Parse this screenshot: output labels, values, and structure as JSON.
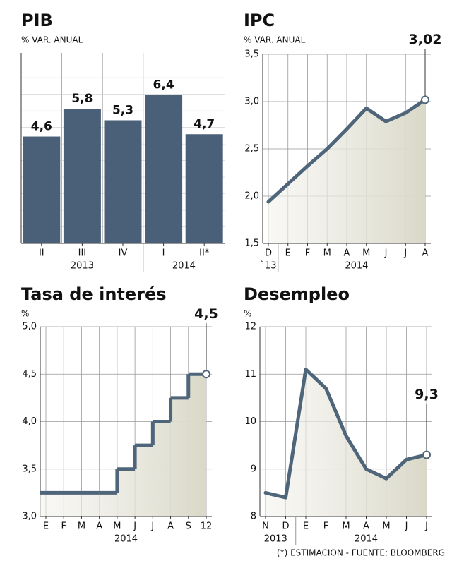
{
  "chart_data": [
    {
      "type": "bar",
      "title": "PIB",
      "subtitle": "% VAR. ANUAL",
      "categories": [
        "II",
        "III",
        "IV",
        "I",
        "II*"
      ],
      "groups": [
        {
          "label": "2013",
          "count": 3
        },
        {
          "label": "2014",
          "count": 2
        }
      ],
      "values": [
        4.6,
        5.8,
        5.3,
        6.4,
        4.7
      ],
      "value_labels": [
        "4,6",
        "5,8",
        "5,3",
        "6,4",
        "4,7"
      ],
      "color": "#4a6078",
      "ylim": [
        0,
        8.2
      ]
    },
    {
      "type": "line",
      "title": "IPC",
      "subtitle": "% VAR. ANUAL",
      "categories": [
        "D",
        "E",
        "F",
        "M",
        "A",
        "M",
        "J",
        "J",
        "A"
      ],
      "groups": [
        {
          "label": "`13",
          "count": 1
        },
        {
          "label": "2014",
          "count": 8
        }
      ],
      "values": [
        1.94,
        2.13,
        2.32,
        2.5,
        2.71,
        2.93,
        2.79,
        2.88,
        3.02
      ],
      "value_labels": [
        null,
        null,
        null,
        null,
        null,
        null,
        null,
        null,
        "3,02"
      ],
      "color": "#4f6579",
      "ylim": [
        1.5,
        3.5
      ],
      "yticks": [
        {
          "value": 1.5,
          "label": "1,5"
        },
        {
          "value": 2.0,
          "label": "2,0"
        },
        {
          "value": 2.5,
          "label": "2,5"
        },
        {
          "value": 3.0,
          "label": "3,0"
        },
        {
          "value": 3.5,
          "label": "3,5"
        }
      ],
      "grid": true
    },
    {
      "type": "step",
      "title": "Tasa de interés",
      "subtitle": "%",
      "categories": [
        "E",
        "F",
        "M",
        "A",
        "M",
        "J",
        "J",
        "A",
        "S",
        "12"
      ],
      "groups": [
        {
          "label": "2014",
          "count": 10
        }
      ],
      "values": [
        3.25,
        3.25,
        3.25,
        3.25,
        3.5,
        3.75,
        4.0,
        4.25,
        4.5,
        4.5
      ],
      "value_labels": [
        null,
        null,
        null,
        null,
        null,
        null,
        null,
        null,
        null,
        "4,5"
      ],
      "color": "#4f6579",
      "ylim": [
        3.0,
        5.0
      ],
      "yticks": [
        {
          "value": 3.0,
          "label": "3,0"
        },
        {
          "value": 3.5,
          "label": "3,5"
        },
        {
          "value": 4.0,
          "label": "4,0"
        },
        {
          "value": 4.5,
          "label": "4,5"
        },
        {
          "value": 5.0,
          "label": "5,0"
        }
      ],
      "grid": true
    },
    {
      "type": "line",
      "title": "Desempleo",
      "subtitle": "%",
      "categories": [
        "N",
        "D",
        "E",
        "F",
        "M",
        "A",
        "M",
        "J",
        "J"
      ],
      "groups": [
        {
          "label": "2013",
          "count": 2
        },
        {
          "label": "2014",
          "count": 7
        }
      ],
      "values": [
        8.5,
        8.4,
        11.1,
        10.7,
        9.7,
        9.0,
        8.8,
        9.2,
        9.3
      ],
      "value_labels": [
        null,
        null,
        null,
        null,
        null,
        null,
        null,
        null,
        "9,3"
      ],
      "color": "#4f6579",
      "ylim": [
        8,
        12
      ],
      "yticks": [
        8,
        9,
        10,
        11,
        12
      ],
      "grid": true
    }
  ],
  "footnote": "(*) ESTIMACION - FUENTE: BLOOMBERG"
}
